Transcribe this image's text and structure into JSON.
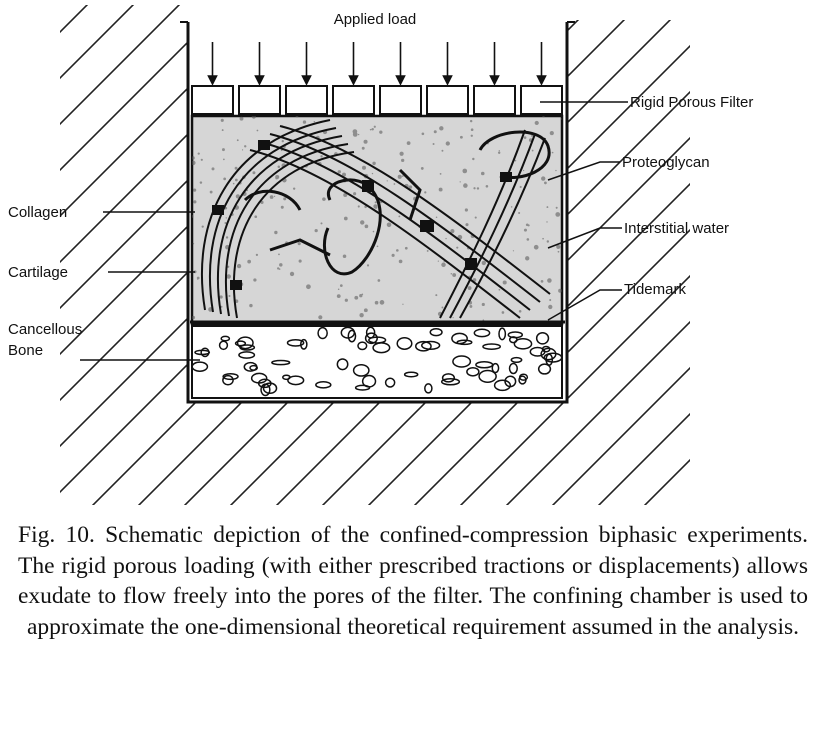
{
  "diagram": {
    "labels": {
      "applied_load": "Applied load",
      "rigid_porous_filter": "Rigid Porous Filter",
      "proteoglycan": "Proteoglycan",
      "interstitial_water": "Interstitial water",
      "tidemark": "Tidemark",
      "collagen": "Collagen",
      "cartilage": "Cartilage",
      "cancellous_line1": "Cancellous",
      "cancellous_line2": "Bone"
    }
  },
  "caption": "Fig. 10. Schematic depiction of the confined-compression biphasic experiments. The rigid porous loading (with either prescribed tractions or displacements) allows exudate to flow freely into the pores of the filter. The confining chamber is used to approximate the one-dimensional theoretical requirement assumed in the analysis."
}
